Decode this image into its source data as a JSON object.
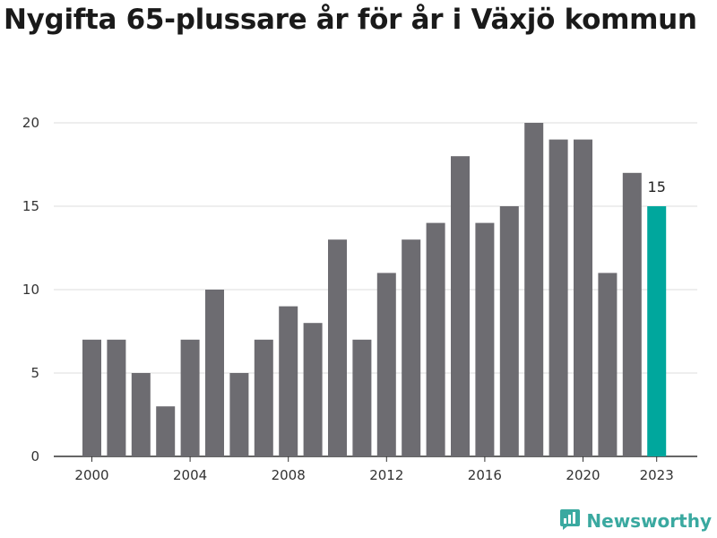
{
  "title": "Nygifta 65-plussare år för år i Växjö kommun",
  "brand": {
    "name": "Newsworthy",
    "icon": "newsworthy-logo-icon",
    "color": "#3aa9a0"
  },
  "colors": {
    "bar": "#6d6c71",
    "highlight": "#00a79d",
    "grid": "#dddddd",
    "axis": "#333333"
  },
  "chart_data": {
    "type": "bar",
    "title": "Nygifta 65-plussare år för år i Växjö kommun",
    "xlabel": "",
    "ylabel": "",
    "categories": [
      2000,
      2001,
      2002,
      2003,
      2004,
      2005,
      2006,
      2007,
      2008,
      2009,
      2010,
      2011,
      2012,
      2013,
      2014,
      2015,
      2016,
      2017,
      2018,
      2019,
      2020,
      2021,
      2022,
      2023
    ],
    "values": [
      7,
      7,
      5,
      3,
      7,
      10,
      5,
      7,
      9,
      8,
      13,
      7,
      11,
      13,
      14,
      18,
      14,
      15,
      20,
      19,
      19,
      11,
      17,
      15
    ],
    "ylim": [
      0,
      20
    ],
    "yticks": [
      0,
      5,
      10,
      15,
      20
    ],
    "xticks": [
      "2000",
      "2004",
      "2008",
      "2012",
      "2016",
      "2020",
      "2023"
    ],
    "highlight": {
      "category": 2023,
      "label": "15"
    },
    "grid": true,
    "legend": "none"
  }
}
